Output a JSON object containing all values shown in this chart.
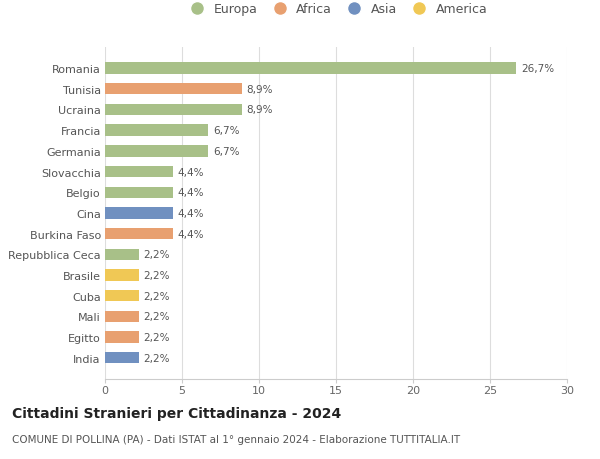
{
  "categories": [
    "Romania",
    "Tunisia",
    "Ucraina",
    "Francia",
    "Germania",
    "Slovacchia",
    "Belgio",
    "Cina",
    "Burkina Faso",
    "Repubblica Ceca",
    "Brasile",
    "Cuba",
    "Mali",
    "Egitto",
    "India"
  ],
  "values": [
    26.7,
    8.9,
    8.9,
    6.7,
    6.7,
    4.4,
    4.4,
    4.4,
    4.4,
    2.2,
    2.2,
    2.2,
    2.2,
    2.2,
    2.2
  ],
  "labels": [
    "26,7%",
    "8,9%",
    "8,9%",
    "6,7%",
    "6,7%",
    "4,4%",
    "4,4%",
    "4,4%",
    "4,4%",
    "2,2%",
    "2,2%",
    "2,2%",
    "2,2%",
    "2,2%",
    "2,2%"
  ],
  "continents": [
    "Europa",
    "Africa",
    "Europa",
    "Europa",
    "Europa",
    "Europa",
    "Europa",
    "Asia",
    "Africa",
    "Europa",
    "America",
    "America",
    "Africa",
    "Africa",
    "Asia"
  ],
  "colors": {
    "Europa": "#a8c088",
    "Africa": "#e8a070",
    "Asia": "#7090c0",
    "America": "#f0c855"
  },
  "title": "Cittadini Stranieri per Cittadinanza - 2024",
  "subtitle": "COMUNE DI POLLINA (PA) - Dati ISTAT al 1° gennaio 2024 - Elaborazione TUTTITALIA.IT",
  "xlim": [
    0,
    30
  ],
  "xticks": [
    0,
    5,
    10,
    15,
    20,
    25,
    30
  ],
  "background_color": "#ffffff",
  "grid_color": "#dddddd",
  "bar_height": 0.55,
  "legend_order": [
    "Europa",
    "Africa",
    "Asia",
    "America"
  ]
}
